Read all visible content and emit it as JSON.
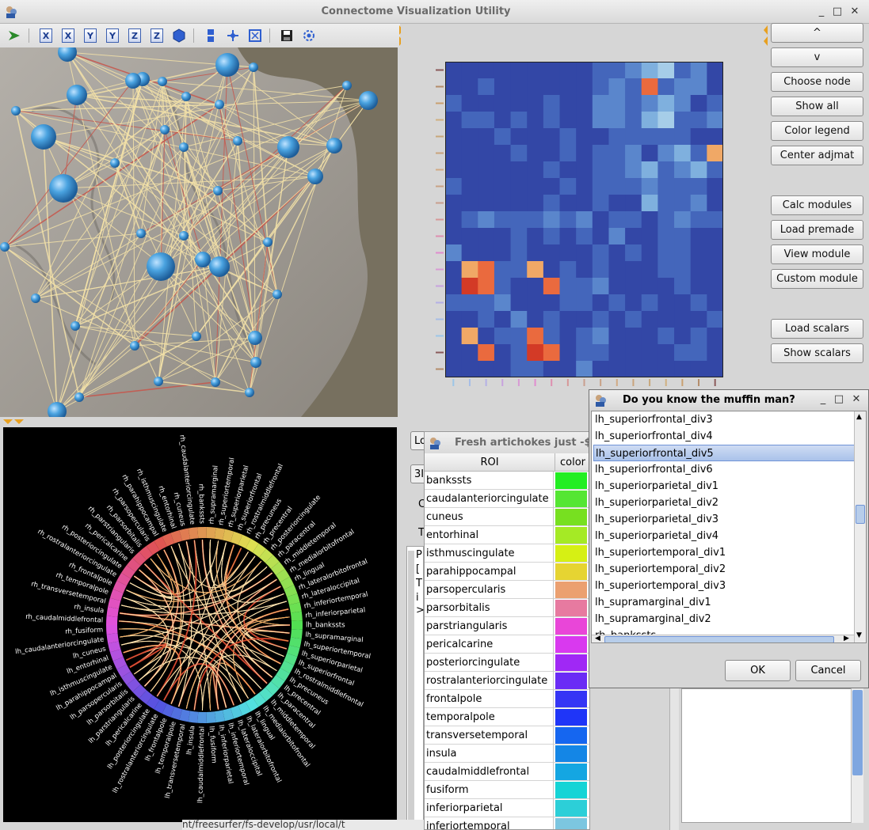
{
  "window": {
    "title": "Connectome Visualization Utility",
    "minimize": "_",
    "maximize": "□",
    "close": "✕"
  },
  "toolbar": {
    "axis_buttons": [
      "X",
      "X",
      "Y",
      "Y",
      "Z",
      "Z"
    ]
  },
  "side_buttons": [
    "^",
    "v",
    "Choose node",
    "Show all",
    "Color legend",
    "Center adjmat",
    "Calc modules",
    "Load premade",
    "View module",
    "Custom module",
    "Load scalars",
    "Show scalars"
  ],
  "colors": {
    "node": "#4aa3e0",
    "edge": "#f4e2a8",
    "matrix_low": "#3a4ea8",
    "matrix_high": "#e8532a"
  },
  "adjacency": {
    "rows": [
      [
        1,
        1,
        1,
        1,
        1,
        1,
        1,
        1,
        1,
        2,
        2,
        3,
        4,
        5,
        2,
        3,
        1
      ],
      [
        1,
        1,
        2,
        1,
        1,
        1,
        1,
        1,
        1,
        2,
        3,
        2,
        8,
        2,
        3,
        3,
        1
      ],
      [
        2,
        1,
        1,
        1,
        1,
        1,
        2,
        1,
        1,
        3,
        3,
        2,
        3,
        4,
        3,
        1,
        2
      ],
      [
        1,
        2,
        2,
        1,
        2,
        1,
        2,
        1,
        1,
        3,
        3,
        2,
        4,
        5,
        2,
        2,
        3
      ],
      [
        1,
        1,
        1,
        2,
        1,
        1,
        1,
        2,
        1,
        1,
        2,
        2,
        2,
        2,
        2,
        1,
        1
      ],
      [
        1,
        1,
        1,
        1,
        2,
        1,
        1,
        2,
        1,
        2,
        2,
        3,
        1,
        3,
        4,
        2,
        7
      ],
      [
        1,
        1,
        1,
        1,
        1,
        1,
        2,
        1,
        1,
        2,
        2,
        3,
        4,
        2,
        3,
        4,
        2
      ],
      [
        2,
        1,
        1,
        1,
        1,
        1,
        1,
        2,
        1,
        2,
        2,
        2,
        3,
        2,
        2,
        2,
        1
      ],
      [
        1,
        1,
        1,
        1,
        1,
        1,
        2,
        1,
        1,
        2,
        1,
        1,
        4,
        2,
        2,
        3,
        1
      ],
      [
        1,
        2,
        3,
        2,
        2,
        2,
        3,
        2,
        3,
        1,
        2,
        2,
        1,
        2,
        3,
        2,
        2
      ],
      [
        1,
        1,
        1,
        1,
        2,
        1,
        2,
        1,
        2,
        1,
        3,
        1,
        1,
        2,
        2,
        1,
        1
      ],
      [
        3,
        1,
        1,
        1,
        2,
        1,
        1,
        1,
        1,
        2,
        1,
        2,
        1,
        2,
        2,
        1,
        1
      ],
      [
        1,
        7,
        8,
        2,
        2,
        7,
        1,
        2,
        1,
        2,
        1,
        1,
        1,
        2,
        2,
        1,
        1
      ],
      [
        1,
        9,
        8,
        2,
        1,
        1,
        8,
        2,
        2,
        3,
        1,
        1,
        1,
        1,
        2,
        1,
        1
      ],
      [
        2,
        2,
        2,
        3,
        1,
        1,
        1,
        2,
        2,
        1,
        2,
        1,
        2,
        1,
        1,
        2,
        1
      ],
      [
        1,
        1,
        2,
        1,
        3,
        1,
        2,
        1,
        1,
        2,
        1,
        2,
        1,
        1,
        1,
        1,
        2
      ],
      [
        1,
        7,
        1,
        2,
        2,
        8,
        2,
        1,
        2,
        3,
        1,
        1,
        1,
        2,
        1,
        2,
        1
      ],
      [
        1,
        1,
        8,
        1,
        2,
        9,
        8,
        1,
        2,
        2,
        1,
        1,
        1,
        1,
        2,
        2,
        1
      ],
      [
        1,
        1,
        1,
        1,
        2,
        2,
        1,
        1,
        3,
        1,
        1,
        1,
        1,
        1,
        1,
        1,
        1
      ]
    ]
  },
  "circle": {
    "left_labels": [
      "rh_bankssts",
      "rh_caudalanteriorcingulate",
      "rh_cuneus",
      "rh_entorhinal",
      "rh_isthmuscingulate",
      "rh_parahippocampal",
      "rh_parsopercularis",
      "rh_parsorbitalis",
      "rh_parstriangularis",
      "rh_pericalcarine",
      "rh_posteriorcingulate",
      "rh_rostralanteriorcingulate",
      "rh_frontalpole",
      "rh_temporalpole",
      "rh_transversetemporal",
      "rh_insula",
      "rh_caudalmiddlefrontal",
      "rh_fusiform"
    ],
    "right_labels": [
      "lh_bankssts",
      "lh_caudalanteriorcingulate",
      "lh_cuneus",
      "lh_entorhinal",
      "lh_isthmuscingulate",
      "lh_parahippocampal",
      "lh_parsopercularis",
      "lh_parsorbitalis",
      "lh_parstriangularis",
      "lh_pericalcarine",
      "lh_posteriorcingulate",
      "lh_rostralanteriorcingulate",
      "lh_frontalpole",
      "lh_temporalpole",
      "lh_transversetemporal",
      "lh_insula",
      "lh_caudalmiddlefrontal",
      "lh_fusiform"
    ],
    "upper_left_labels": [
      "rh_supramarginal",
      "rh_superiortemporal",
      "rh_superiorparietal",
      "rh_superiorfrontal",
      "rh_rostralmiddlefrontal",
      "rh_precuneus",
      "rh_precentral",
      "rh_posteriorcingulate",
      "rh_paracentral",
      "rh_middletemporal",
      "rh_medialorbitofrontal",
      "rh_lingual",
      "rh_lateralorbitofrontal",
      "rh_lateraloccipital",
      "rh_inferiortemporal",
      "rh_inferiorparietal"
    ],
    "lower_right_labels": [
      "lh_supramarginal",
      "lh_superiortemporal",
      "lh_superiorparietal",
      "lh_superiorfrontal",
      "lh_rostralmiddlefrontal",
      "lh_precuneus",
      "lh_precentral",
      "lh_paracentral",
      "lh_middletemporal",
      "lh_medialorbitofrontal",
      "lh_lingual",
      "lh_lateralorbitofrontal",
      "lh_lateraloccipital",
      "lh_inferiortemporal",
      "lh_inferiorparietal"
    ]
  },
  "roi_window": {
    "title": "Fresh artichokes just -$",
    "col_roi": "ROI",
    "col_color": "color",
    "rows": [
      {
        "name": "bankssts",
        "color": "#22ee22"
      },
      {
        "name": "caudalanteriorcingulate",
        "color": "#55e633"
      },
      {
        "name": "cuneus",
        "color": "#77e020"
      },
      {
        "name": "entorhinal",
        "color": "#a5ea25"
      },
      {
        "name": "isthmuscingulate",
        "color": "#d6f014"
      },
      {
        "name": "parahippocampal",
        "color": "#e6d432"
      },
      {
        "name": "parsopercularis",
        "color": "#eba070"
      },
      {
        "name": "parsorbitalis",
        "color": "#e77aa0"
      },
      {
        "name": "parstriangularis",
        "color": "#e946d8"
      },
      {
        "name": "pericalcarine",
        "color": "#d939ef"
      },
      {
        "name": "posteriorcingulate",
        "color": "#a028f5"
      },
      {
        "name": "rostralanteriorcingulate",
        "color": "#6a2cf5"
      },
      {
        "name": "frontalpole",
        "color": "#3535f5"
      },
      {
        "name": "temporalpole",
        "color": "#1f35f8"
      },
      {
        "name": "transversetemporal",
        "color": "#1566f0"
      },
      {
        "name": "insula",
        "color": "#1486e6"
      },
      {
        "name": "caudalmiddlefrontal",
        "color": "#14a6e2"
      },
      {
        "name": "fusiform",
        "color": "#15d4d6"
      },
      {
        "name": "inferiorparietal",
        "color": "#2ccfd8"
      },
      {
        "name": "inferiortemporal",
        "color": "#7cc6e0"
      }
    ]
  },
  "dialog": {
    "title": "Do you know the muffin man?",
    "items": [
      "lh_superiorfrontal_div3",
      "lh_superiorfrontal_div4",
      "lh_superiorfrontal_div5",
      "lh_superiorfrontal_div6",
      "lh_superiorparietal_div1",
      "lh_superiorparietal_div2",
      "lh_superiorparietal_div3",
      "lh_superiorparietal_div4",
      "lh_superiortemporal_div1",
      "lh_superiortemporal_div2",
      "lh_superiortemporal_div3",
      "lh_supramarginal_div1",
      "lh_supramarginal_div2",
      "rh_bankssts"
    ],
    "selected_index": 2,
    "ok": "OK",
    "cancel": "Cancel"
  },
  "fragments": {
    "lo": "Lo",
    "three": "3I",
    "c": "C",
    "t": "T",
    "p": "P",
    "bracket": "[",
    "t2": "T",
    "i": "i",
    "gt": ">",
    "path": "nt/freesurfer/fs-develop/usr/local/t"
  }
}
